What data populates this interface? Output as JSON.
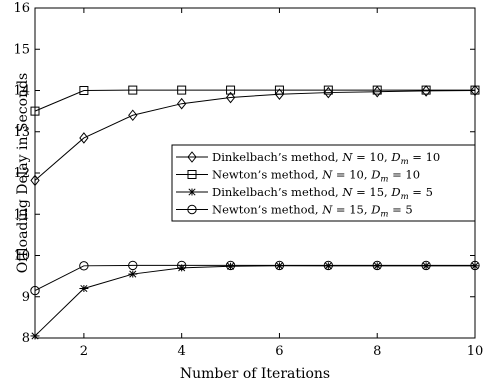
{
  "chart_data": {
    "type": "line",
    "xlabel": "Number of Iterations",
    "ylabel": "Offloading Delay in Seconds",
    "xlim": [
      1,
      10
    ],
    "ylim": [
      8,
      16
    ],
    "xticks": [
      2,
      4,
      6,
      8,
      10
    ],
    "yticks": [
      8,
      9,
      10,
      11,
      12,
      13,
      14,
      15,
      16
    ],
    "grid": false,
    "legend_position": "right",
    "x": [
      1,
      2,
      3,
      4,
      5,
      6,
      7,
      8,
      9,
      10
    ],
    "series": [
      {
        "name": "Dinkelbach's method, N = 10, D_m = 10",
        "label_parts": [
          "Dinkelbach’s method, ",
          "N",
          " = 10, ",
          "D",
          "m",
          " = 10"
        ],
        "marker": "diamond",
        "values": [
          11.82,
          12.85,
          13.4,
          13.68,
          13.83,
          13.91,
          13.95,
          13.97,
          13.99,
          14.0
        ]
      },
      {
        "name": "Newton's method, N = 10, D_m = 10",
        "label_parts": [
          "Newton’s method, ",
          "N",
          " = 10, ",
          "D",
          "m",
          " = 10"
        ],
        "marker": "square",
        "values": [
          13.5,
          14.0,
          14.01,
          14.01,
          14.01,
          14.01,
          14.01,
          14.01,
          14.01,
          14.01
        ]
      },
      {
        "name": "Dinkelbach's method, N = 15, D_m = 5",
        "label_parts": [
          "Dinkelbach’s method, ",
          "N",
          " = 15, ",
          "D",
          "m",
          " = 5"
        ],
        "marker": "asterisk",
        "values": [
          8.05,
          9.2,
          9.55,
          9.7,
          9.74,
          9.75,
          9.75,
          9.75,
          9.75,
          9.75
        ]
      },
      {
        "name": "Newton's method, N = 15, D_m = 5",
        "label_parts": [
          "Newton’s method, ",
          "N",
          " = 15, ",
          "D",
          "m",
          " = 5"
        ],
        "marker": "circle",
        "values": [
          9.15,
          9.75,
          9.76,
          9.76,
          9.76,
          9.76,
          9.76,
          9.76,
          9.76,
          9.76
        ]
      }
    ]
  }
}
